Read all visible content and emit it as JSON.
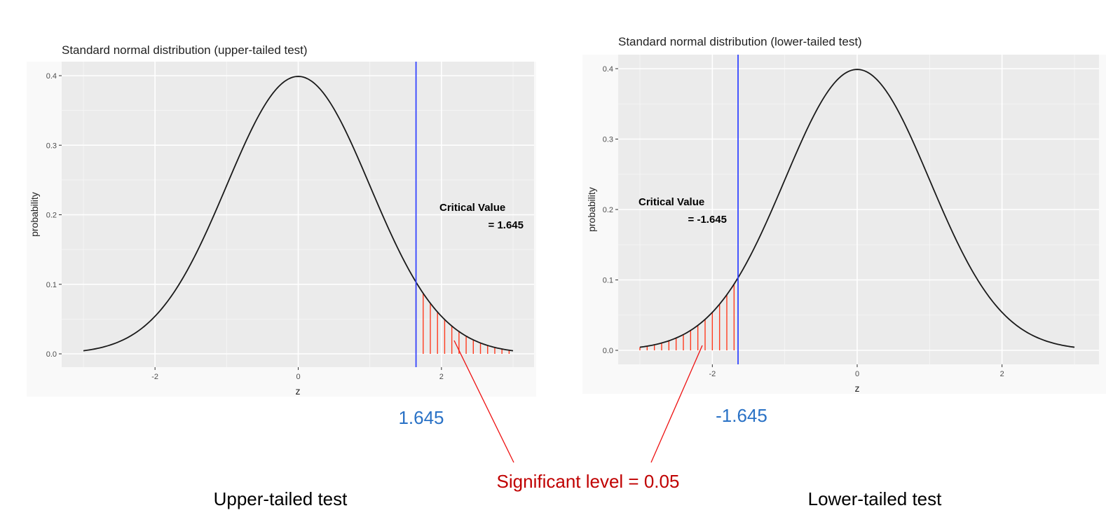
{
  "chart_data": [
    {
      "type": "line",
      "title": "Standard normal distribution (upper-tailed test)",
      "xlabel": "z",
      "ylabel": "probability",
      "xlim": [
        -3,
        3
      ],
      "ylim": [
        0,
        0.4
      ],
      "x_ticks": [
        "-2",
        "0",
        "2"
      ],
      "y_ticks": [
        "0.0",
        "0.1",
        "0.2",
        "0.3",
        "0.4"
      ],
      "grid": true,
      "series": [
        {
          "function": "standard normal density",
          "x_range": [
            -3,
            3
          ],
          "color": "#1a1a1a"
        }
      ],
      "critical_value": 1.645,
      "critical_line_color": "#3344ff",
      "shaded_region": {
        "from": 1.645,
        "to": 3,
        "color": "#ff3b1f"
      },
      "annotation": {
        "line1": "Critical Value",
        "line2": "= 1.645",
        "x": 2.5,
        "y": 0.2
      }
    },
    {
      "type": "line",
      "title": "Standard normal distribution (lower-tailed test)",
      "xlabel": "z",
      "ylabel": "probability",
      "xlim": [
        -3,
        3
      ],
      "ylim": [
        0,
        0.4
      ],
      "x_ticks": [
        "-2",
        "0",
        "2"
      ],
      "y_ticks": [
        "0.0",
        "0.1",
        "0.2",
        "0.3",
        "0.4"
      ],
      "grid": true,
      "series": [
        {
          "function": "standard normal density",
          "x_range": [
            -3,
            3
          ],
          "color": "#1a1a1a"
        }
      ],
      "critical_value": -1.645,
      "critical_line_color": "#3344ff",
      "shaded_region": {
        "from": -3,
        "to": -1.645,
        "color": "#ff3b1f"
      },
      "annotation": {
        "line1": "Critical Value",
        "line2": "= -1.645",
        "x": -2.5,
        "y": 0.2
      }
    }
  ],
  "overlay": {
    "cv_left": "1.645",
    "cv_right": "-1.645",
    "cv_color": "#2a72c6",
    "significance": "Significant level = 0.05",
    "significance_color": "#c00000",
    "caption_left": "Upper-tailed test",
    "caption_right": "Lower-tailed test"
  }
}
